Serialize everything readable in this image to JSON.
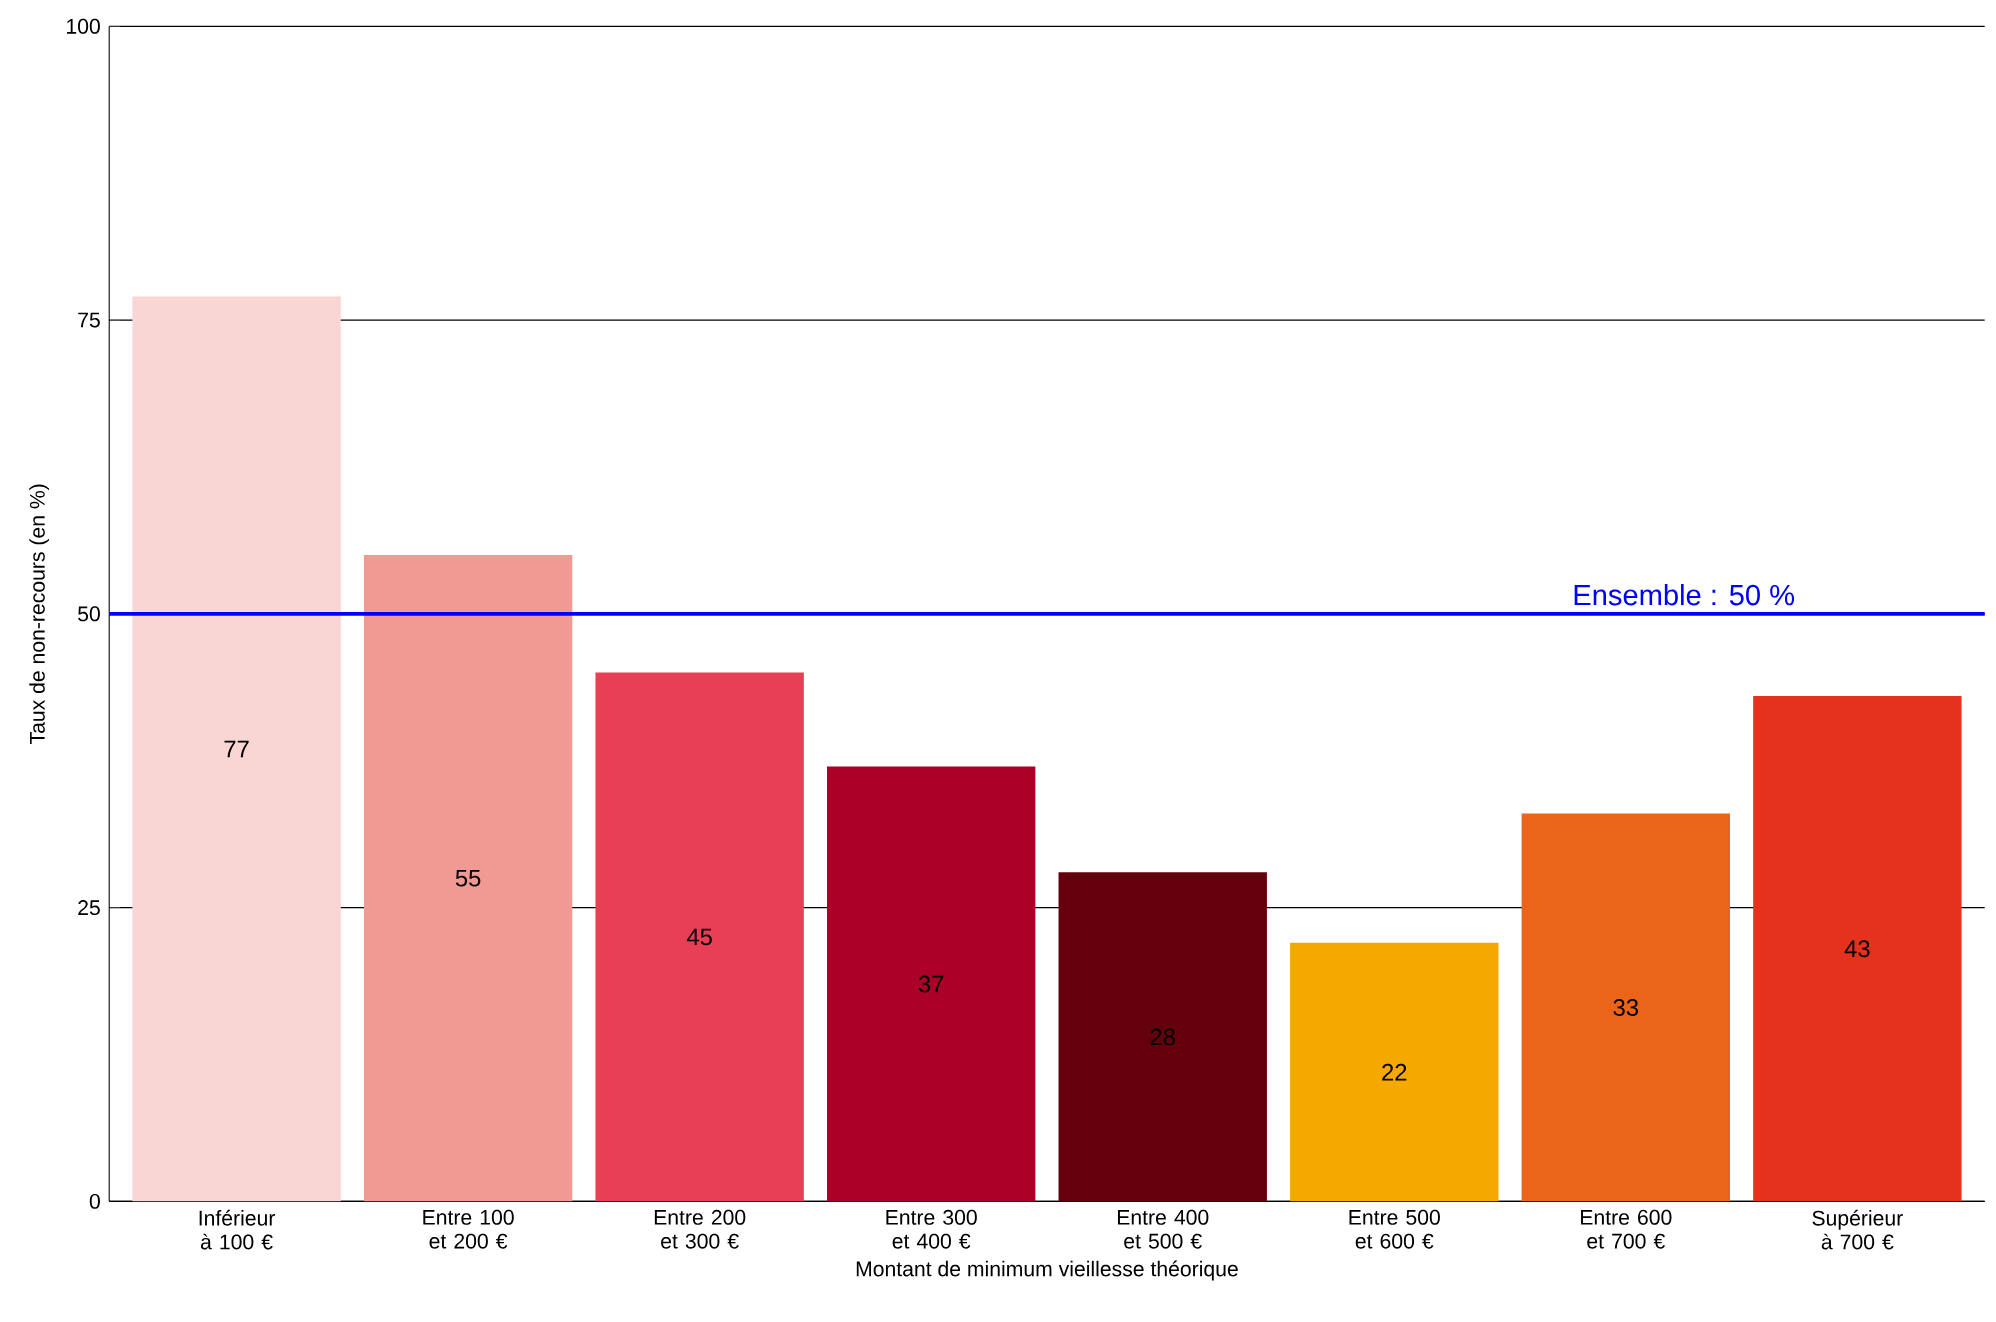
{
  "chart_data": {
    "type": "bar",
    "xlabel": "Montant de minimum vieillesse théorique",
    "ylabel": "Taux de non-recours (en %)",
    "categories": [
      "Inférieur à 100 €",
      "Entre 100 et 200 €",
      "Entre 200 et 300 €",
      "Entre 300 et 400 €",
      "Entre 400 et 500 €",
      "Entre 500 et 600 €",
      "Entre 600 et 700 €",
      "Supérieur à 700 €"
    ],
    "values": [
      77,
      55,
      45,
      37,
      28,
      22,
      33,
      43
    ],
    "colors": [
      "#f9d5d3",
      "#f19993",
      "#e83e56",
      "#ad0029",
      "#64000c",
      "#f5a800",
      "#ea6519",
      "#e5321c"
    ],
    "ylim": [
      0,
      100
    ],
    "yticks": [
      0,
      25,
      50,
      75,
      100
    ],
    "grid": "y",
    "data_labels": true,
    "ref_lines": [
      {
        "axis": "y",
        "value": 50,
        "label": "Ensemble : 50 %",
        "color": "#0000ff"
      }
    ]
  }
}
